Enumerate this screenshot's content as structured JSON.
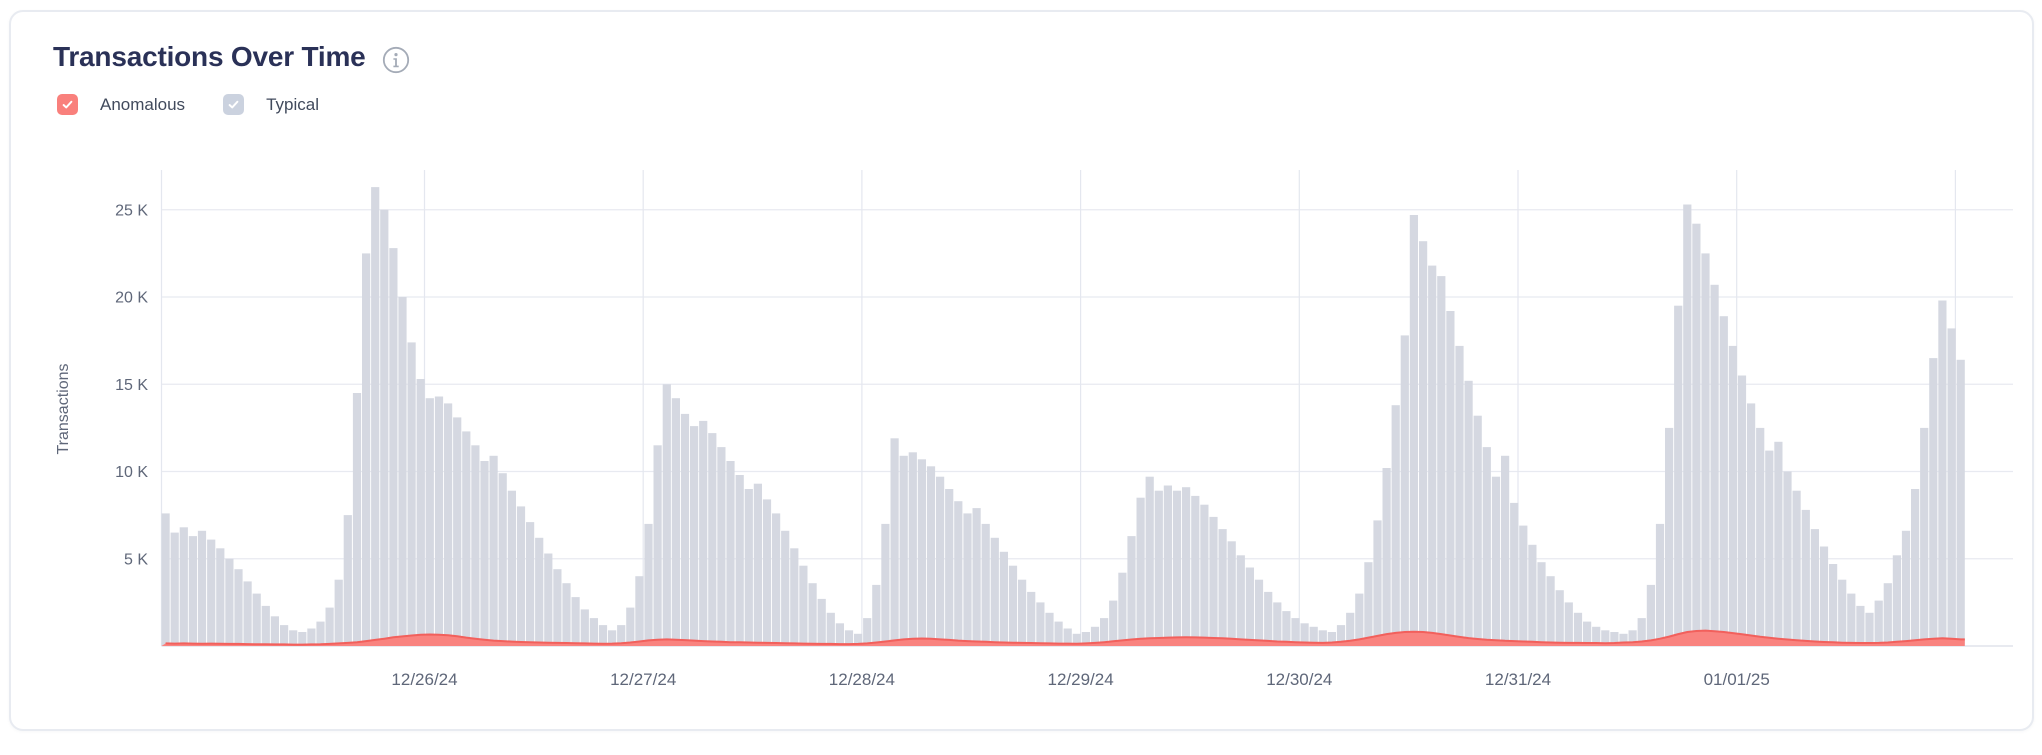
{
  "card": {
    "title": "Transactions Over Time",
    "info_icon": "info-icon"
  },
  "legend": {
    "items": [
      {
        "label": "Anomalous",
        "color": "#f9807c",
        "check_color": "#ffffff",
        "checked": true
      },
      {
        "label": "Typical",
        "color": "#cbd2df",
        "check_color": "#ffffff",
        "checked": true
      }
    ]
  },
  "theme": {
    "title_color": "#2a3157",
    "axis_text_color": "#5f6779",
    "grid_h_color": "#e8eaf1",
    "grid_v_color": "#e4e7ef",
    "baseline_color": "#e1e4eb",
    "bar_color": "#d5d8e1",
    "anomalous_fill": "#f9837f",
    "anomalous_stroke": "#f2605c",
    "info_icon_color": "#a4abb7"
  },
  "chart_data": {
    "type": "bar",
    "title": "Transactions Over Time",
    "xlabel": "",
    "ylabel": "Transactions",
    "x_tick_labels": [
      "12/26/24",
      "12/27/24",
      "12/28/24",
      "12/29/24",
      "12/30/24",
      "12/31/24",
      "01/01/25"
    ],
    "y_ticks": [
      {
        "label": "5 K",
        "value": 5000
      },
      {
        "label": "10 K",
        "value": 10000
      },
      {
        "label": "15 K",
        "value": 15000
      },
      {
        "label": "20 K",
        "value": 20000
      },
      {
        "label": "25 K",
        "value": 25000
      }
    ],
    "ylim": [
      0,
      27300
    ],
    "grid": true,
    "legend_position": "top-left",
    "x_description": "hourly bars, one vertical gridline per day at each date label; data runs from late 12/24/24 through early 01/02/25",
    "values_unit": "thousands of transactions",
    "series": [
      {
        "name": "Typical",
        "style": "bars",
        "color": "#d5d8e1",
        "values": [
          7.6,
          6.5,
          6.8,
          6.3,
          6.6,
          6.1,
          5.6,
          5.0,
          4.4,
          3.7,
          3.0,
          2.3,
          1.7,
          1.2,
          0.9,
          0.8,
          1.0,
          1.4,
          2.2,
          3.8,
          7.5,
          14.5,
          22.5,
          26.3,
          25.0,
          22.8,
          20.0,
          17.4,
          15.3,
          14.2,
          14.3,
          13.9,
          13.1,
          12.3,
          11.5,
          10.6,
          10.9,
          9.9,
          8.9,
          8.0,
          7.1,
          6.2,
          5.3,
          4.4,
          3.6,
          2.8,
          2.1,
          1.6,
          1.2,
          0.9,
          1.2,
          2.2,
          4.0,
          7.0,
          11.5,
          15.0,
          14.2,
          13.3,
          12.6,
          12.9,
          12.2,
          11.4,
          10.6,
          9.8,
          9.0,
          9.3,
          8.4,
          7.6,
          6.6,
          5.6,
          4.6,
          3.6,
          2.7,
          1.9,
          1.3,
          0.9,
          0.7,
          1.6,
          3.5,
          7.0,
          11.9,
          10.9,
          11.1,
          10.7,
          10.3,
          9.7,
          9.0,
          8.3,
          7.6,
          7.9,
          7.0,
          6.2,
          5.4,
          4.6,
          3.8,
          3.1,
          2.5,
          1.9,
          1.4,
          1.0,
          0.7,
          0.8,
          1.1,
          1.6,
          2.6,
          4.2,
          6.3,
          8.5,
          9.7,
          8.9,
          9.2,
          8.9,
          9.1,
          8.6,
          8.1,
          7.4,
          6.7,
          6.0,
          5.2,
          4.5,
          3.8,
          3.1,
          2.5,
          2.0,
          1.6,
          1.3,
          1.1,
          0.9,
          0.8,
          1.2,
          1.9,
          3.0,
          4.8,
          7.2,
          10.2,
          13.8,
          17.8,
          24.7,
          23.2,
          21.8,
          21.2,
          19.2,
          17.2,
          15.2,
          13.2,
          11.4,
          9.7,
          10.9,
          8.2,
          6.9,
          5.8,
          4.8,
          4.0,
          3.2,
          2.5,
          1.9,
          1.4,
          1.1,
          0.9,
          0.8,
          0.7,
          0.9,
          1.6,
          3.5,
          7.0,
          12.5,
          19.5,
          25.3,
          24.2,
          22.5,
          20.7,
          18.9,
          17.2,
          15.5,
          13.9,
          12.5,
          11.2,
          11.7,
          10.0,
          8.9,
          7.8,
          6.7,
          5.7,
          4.7,
          3.8,
          3.0,
          2.3,
          1.9,
          2.6,
          3.6,
          5.2,
          6.6,
          9.0,
          12.5,
          16.5,
          19.8,
          18.2,
          16.4
        ]
      },
      {
        "name": "Anomalous",
        "style": "area",
        "color": "#f9837f",
        "stroke": "#f2605c",
        "values": [
          0.15,
          0.14,
          0.15,
          0.14,
          0.13,
          0.14,
          0.13,
          0.12,
          0.12,
          0.11,
          0.1,
          0.1,
          0.09,
          0.09,
          0.08,
          0.08,
          0.09,
          0.1,
          0.12,
          0.15,
          0.18,
          0.22,
          0.28,
          0.35,
          0.42,
          0.5,
          0.55,
          0.6,
          0.64,
          0.66,
          0.65,
          0.62,
          0.56,
          0.48,
          0.42,
          0.36,
          0.31,
          0.28,
          0.25,
          0.23,
          0.21,
          0.2,
          0.19,
          0.18,
          0.17,
          0.16,
          0.15,
          0.14,
          0.13,
          0.14,
          0.16,
          0.2,
          0.26,
          0.32,
          0.36,
          0.38,
          0.36,
          0.34,
          0.31,
          0.28,
          0.26,
          0.24,
          0.22,
          0.21,
          0.2,
          0.19,
          0.18,
          0.17,
          0.16,
          0.15,
          0.14,
          0.13,
          0.12,
          0.12,
          0.11,
          0.11,
          0.12,
          0.15,
          0.2,
          0.26,
          0.32,
          0.38,
          0.42,
          0.43,
          0.41,
          0.38,
          0.35,
          0.31,
          0.28,
          0.26,
          0.24,
          0.22,
          0.2,
          0.19,
          0.18,
          0.17,
          0.16,
          0.15,
          0.14,
          0.14,
          0.13,
          0.15,
          0.18,
          0.22,
          0.27,
          0.32,
          0.37,
          0.41,
          0.44,
          0.46,
          0.48,
          0.49,
          0.5,
          0.49,
          0.48,
          0.46,
          0.44,
          0.41,
          0.38,
          0.35,
          0.32,
          0.29,
          0.26,
          0.24,
          0.22,
          0.2,
          0.19,
          0.18,
          0.2,
          0.24,
          0.3,
          0.38,
          0.48,
          0.58,
          0.68,
          0.75,
          0.8,
          0.82,
          0.8,
          0.75,
          0.68,
          0.6,
          0.52,
          0.45,
          0.4,
          0.36,
          0.33,
          0.3,
          0.28,
          0.26,
          0.24,
          0.22,
          0.2,
          0.19,
          0.18,
          0.18,
          0.17,
          0.17,
          0.16,
          0.17,
          0.2,
          0.22,
          0.26,
          0.32,
          0.42,
          0.54,
          0.68,
          0.8,
          0.86,
          0.88,
          0.85,
          0.8,
          0.74,
          0.67,
          0.6,
          0.53,
          0.47,
          0.42,
          0.37,
          0.33,
          0.29,
          0.26,
          0.23,
          0.21,
          0.19,
          0.18,
          0.17,
          0.17,
          0.18,
          0.2,
          0.24,
          0.28,
          0.33,
          0.38,
          0.42,
          0.44,
          0.42,
          0.38
        ]
      }
    ]
  }
}
